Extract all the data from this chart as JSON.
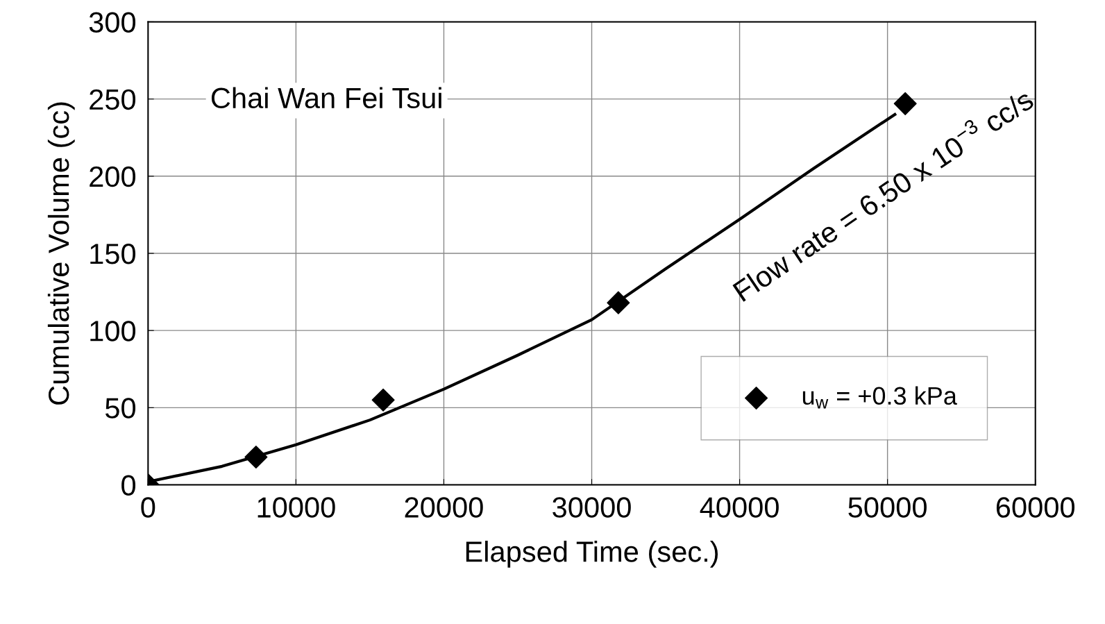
{
  "chart_data": {
    "type": "scatter",
    "xlabel": "Elapsed Time (sec.)",
    "ylabel": "Cumulative Volume (cc)",
    "xlim": [
      0,
      60000
    ],
    "ylim": [
      0,
      300
    ],
    "xticks": [
      0,
      10000,
      20000,
      30000,
      40000,
      50000,
      60000
    ],
    "yticks": [
      0,
      50,
      100,
      150,
      200,
      250,
      300
    ],
    "grid": true,
    "legend": "lower right",
    "series": [
      {
        "name": "u$_{w}$ = +0.3 kPa",
        "color": "#000000",
        "marker": "diamond",
        "x": [
          0,
          7300,
          15900,
          31800,
          51200
        ],
        "values": [
          0,
          18,
          55,
          118,
          247
        ]
      },
      {
        "type": "line",
        "color": "#000000",
        "x": [
          0,
          5000,
          10000,
          15000,
          20000,
          25000,
          30000,
          35000,
          40000,
          45000,
          50500
        ],
        "values": [
          2,
          12,
          26,
          42,
          62,
          84,
          107,
          140,
          172,
          205,
          240
        ]
      }
    ],
    "annotations": [
      "Chai Wan Fei Tsui",
      "Flow rate = 6.50 x 10$^{−3}$ cc/s"
    ]
  }
}
